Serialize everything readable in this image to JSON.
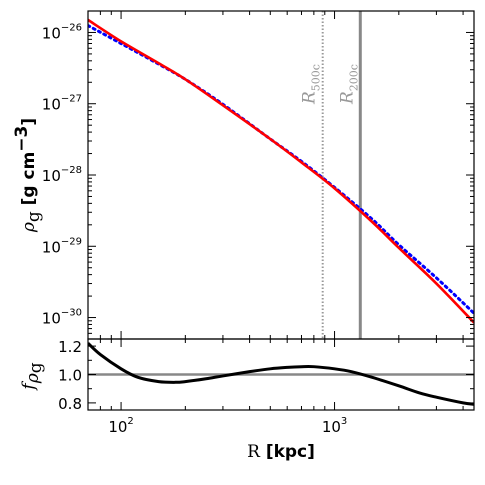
{
  "chart_data": [
    {
      "type": "line",
      "panel": "top",
      "xscale": "log",
      "yscale": "log",
      "xlim": [
        70,
        4500
      ],
      "ylim": [
        5e-31,
        2e-26
      ],
      "ylabel_symbol": "ρ",
      "ylabel_sub": "g",
      "ylabel_unit": "[g cm",
      "ylabel_unit_exp": "−3",
      "ylabel_unit_end": "]",
      "yticks": [
        {
          "value": 1e-26,
          "base": "10",
          "exp": "−26"
        },
        {
          "value": 1e-27,
          "base": "10",
          "exp": "−27"
        },
        {
          "value": 1e-28,
          "base": "10",
          "exp": "−28"
        },
        {
          "value": 1e-29,
          "base": "10",
          "exp": "−29"
        },
        {
          "value": 1e-30,
          "base": "10",
          "exp": "−30"
        }
      ],
      "vlines": [
        {
          "x": 880,
          "style": "dotted",
          "color": "#999999",
          "label": "R",
          "label_sub": "500c"
        },
        {
          "x": 1320,
          "style": "solid",
          "color": "#888888",
          "label": "R",
          "label_sub": "200c"
        }
      ],
      "series": [
        {
          "style": "solid",
          "color": "#ff0000",
          "x": [
            70,
            100,
            150,
            200,
            300,
            500,
            700,
            1000,
            1500,
            2000,
            3000,
            4500
          ],
          "y": [
            1.5e-26,
            7.5e-27,
            3.7e-27,
            2.2e-27,
            9.5e-28,
            3.2e-28,
            1.5e-28,
            6.5e-29,
            2.2e-29,
            9.5e-30,
            3e-30,
            8.5e-31
          ]
        },
        {
          "style": "dotted",
          "color": "#0000ff",
          "x": [
            70,
            100,
            150,
            200,
            300,
            500,
            700,
            1000,
            1500,
            2000,
            3000,
            4500
          ],
          "y": [
            1.25e-26,
            7e-27,
            3.6e-27,
            2.2e-27,
            9.8e-28,
            3.2e-28,
            1.55e-28,
            6.7e-29,
            2.4e-29,
            1.05e-29,
            3.6e-30,
            1.15e-30
          ]
        }
      ]
    },
    {
      "type": "line",
      "panel": "bottom",
      "xscale": "log",
      "xlim": [
        70,
        4500
      ],
      "ylim": [
        0.75,
        1.25
      ],
      "xlabel": "R",
      "xlabel_unit": "[kpc]",
      "ylabel_symbol": "f",
      "ylabel_sub": "ρ",
      "ylabel_subsub": "g",
      "yticks": [
        "0.8",
        "1.0",
        "1.2"
      ],
      "xticks": [
        {
          "value": 100,
          "base": "10",
          "exp": "2"
        },
        {
          "value": 1000,
          "base": "10",
          "exp": "3"
        }
      ],
      "hline": 1.0,
      "series": [
        {
          "style": "solid",
          "color": "#000000",
          "x": [
            70,
            80,
            100,
            120,
            150,
            180,
            200,
            250,
            300,
            400,
            500,
            600,
            700,
            800,
            1000,
            1200,
            1500,
            2000,
            2500,
            3000,
            4000,
            4500
          ],
          "y": [
            1.22,
            1.14,
            1.04,
            0.98,
            0.95,
            0.945,
            0.95,
            0.97,
            0.99,
            1.02,
            1.04,
            1.05,
            1.055,
            1.055,
            1.04,
            1.02,
            0.98,
            0.92,
            0.87,
            0.84,
            0.8,
            0.79
          ]
        }
      ]
    }
  ]
}
